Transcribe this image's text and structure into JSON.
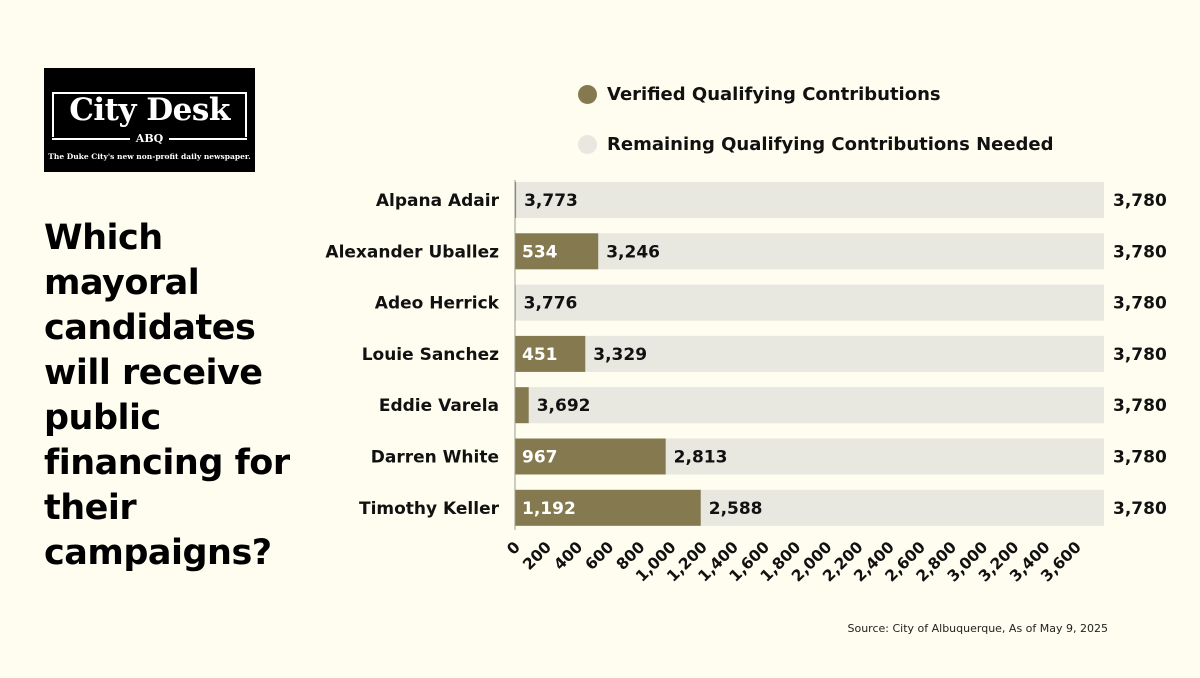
{
  "logo": {
    "title": "City Desk",
    "sub": "ABQ",
    "tagline": "The Duke City's new non-profit daily newspaper."
  },
  "headline": "Which mayoral candidates will receive public financing for their campaigns?",
  "source": "Source: City of Albuquerque, As of May 9, 2025",
  "colors": {
    "verified": "#857a4f",
    "remaining": "#e8e7e0",
    "background": "#fefdf0"
  },
  "chart_data": {
    "type": "bar",
    "orientation": "horizontal",
    "stacked": true,
    "categories": [
      "Alpana Adair",
      "Alexander Uballez",
      "Adeo Herrick",
      "Louie Sanchez",
      "Eddie Varela",
      "Darren White",
      "Timothy Keller"
    ],
    "series": [
      {
        "name": "Verified Qualifying Contributions",
        "values": [
          7,
          534,
          4,
          451,
          88,
          967,
          1192
        ],
        "labels": [
          "",
          "534",
          "",
          "451",
          "",
          "967",
          "1,192"
        ]
      },
      {
        "name": "Remaining Qualifying Contributions Needed",
        "values": [
          3773,
          3246,
          3776,
          3329,
          3692,
          2813,
          2588
        ],
        "labels": [
          "3,773",
          "3,246",
          "3,776",
          "3,329",
          "3,692",
          "2,813",
          "2,588"
        ]
      }
    ],
    "totals": [
      3780,
      3780,
      3780,
      3780,
      3780,
      3780,
      3780
    ],
    "total_labels": [
      "3,780",
      "3,780",
      "3,780",
      "3,780",
      "3,780",
      "3,780",
      "3,780"
    ],
    "xticks": [
      "0",
      "200",
      "400",
      "600",
      "800",
      "1,000",
      "1,200",
      "1,400",
      "1,600",
      "1,800",
      "2,000",
      "2,200",
      "2,400",
      "2,600",
      "2,800",
      "3,000",
      "3,200",
      "3,400",
      "3,600"
    ],
    "xtick_values": [
      0,
      200,
      400,
      600,
      800,
      1000,
      1200,
      1400,
      1600,
      1800,
      2000,
      2200,
      2400,
      2600,
      2800,
      3000,
      3200,
      3400,
      3600
    ],
    "xlim": [
      0,
      3780
    ],
    "legend_position": "top",
    "grid": false
  }
}
